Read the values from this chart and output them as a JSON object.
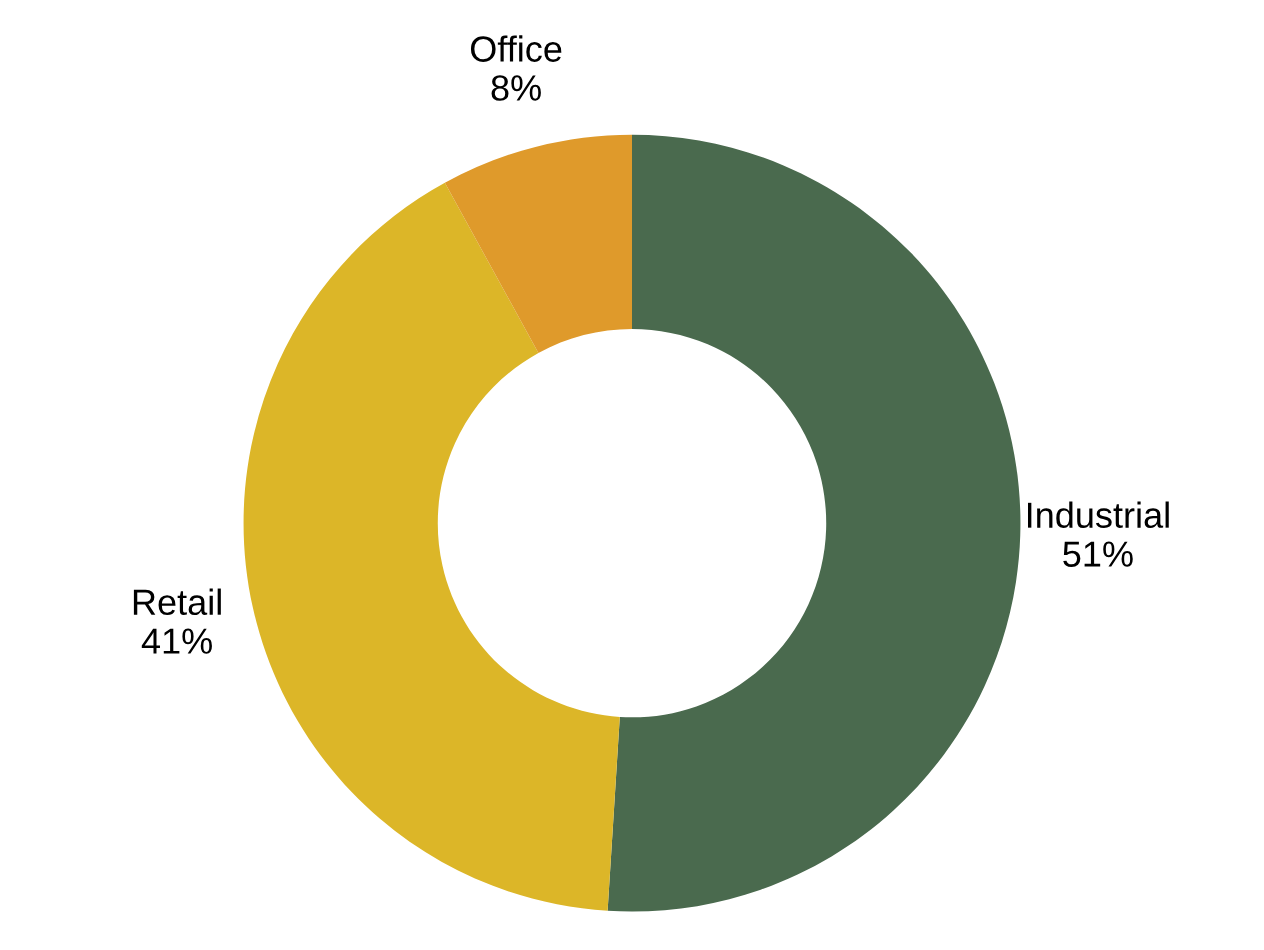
{
  "chart_data": {
    "type": "donut",
    "categories": [
      "Industrial",
      "Retail",
      "Office"
    ],
    "values": [
      51,
      41,
      8
    ],
    "value_labels": [
      "51%",
      "41%",
      "8%"
    ],
    "colors": [
      "#4a6a4e",
      "#dcb628",
      "#df9a2b"
    ]
  }
}
